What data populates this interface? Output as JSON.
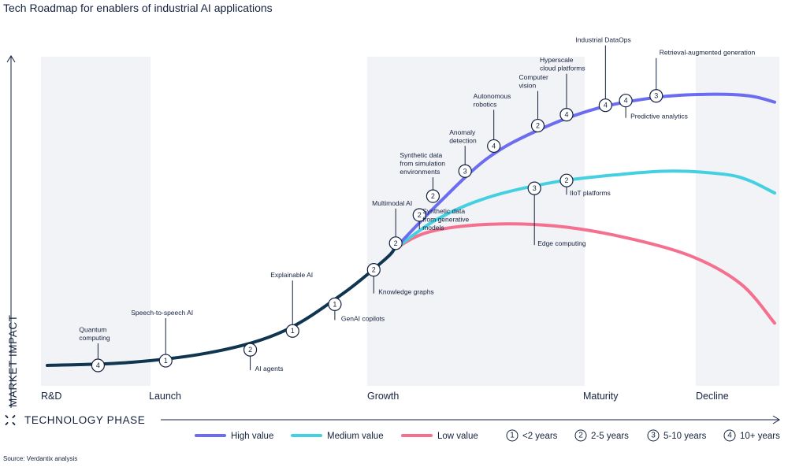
{
  "title": "Tech Roadmap for enablers of industrial AI applications",
  "source": "Source: Verdantix analysis",
  "colors": {
    "launch_line": "#0f3550",
    "high": "#6b6cf0",
    "medium": "#45d0e2",
    "low": "#f4708e",
    "band": "#f2f3f6",
    "text": "#14213d"
  },
  "chart_data": {
    "type": "line",
    "title": "Tech Roadmap for enablers of industrial AI applications",
    "xlabel": "TECHNOLOGY PHASE",
    "ylabel": "MARKET IMPACT",
    "x_phases": [
      "R&D",
      "Launch",
      "Growth",
      "Maturity",
      "Decline"
    ],
    "xlim": [
      0,
      4.3
    ],
    "ylim": [
      0,
      10
    ],
    "series": [
      {
        "name": "Launch curve",
        "color": "launch_line",
        "points": [
          [
            0,
            0.1
          ],
          [
            0.5,
            0.2
          ],
          [
            1,
            0.55
          ],
          [
            1.4,
            1.2
          ],
          [
            1.75,
            2.4
          ],
          [
            2,
            3.5
          ],
          [
            2.05,
            3.8
          ]
        ]
      },
      {
        "name": "High value",
        "color": "high",
        "points": [
          [
            2.05,
            3.8
          ],
          [
            2.3,
            5.2
          ],
          [
            2.6,
            6.7
          ],
          [
            2.9,
            7.6
          ],
          [
            3.25,
            8.3
          ],
          [
            3.6,
            8.65
          ],
          [
            3.9,
            8.75
          ],
          [
            4.15,
            8.7
          ],
          [
            4.3,
            8.5
          ]
        ]
      },
      {
        "name": "Medium value",
        "color": "medium",
        "points": [
          [
            2.05,
            3.8
          ],
          [
            2.3,
            4.75
          ],
          [
            2.6,
            5.45
          ],
          [
            3.0,
            5.95
          ],
          [
            3.4,
            6.2
          ],
          [
            3.7,
            6.3
          ],
          [
            4.0,
            6.2
          ],
          [
            4.15,
            6.0
          ],
          [
            4.3,
            5.6
          ]
        ]
      },
      {
        "name": "Low value",
        "color": "low",
        "points": [
          [
            2.05,
            3.8
          ],
          [
            2.25,
            4.35
          ],
          [
            2.6,
            4.6
          ],
          [
            3.0,
            4.55
          ],
          [
            3.4,
            4.2
          ],
          [
            3.8,
            3.6
          ],
          [
            4.1,
            2.7
          ],
          [
            4.3,
            1.45
          ]
        ]
      }
    ],
    "markers": [
      {
        "label": "Quantum computing",
        "value": "4",
        "x": 0.3,
        "y": 0.1,
        "callout": "up"
      },
      {
        "label": "Speech-to-speech AI",
        "value": "1",
        "x": 0.7,
        "y": 0.25,
        "callout": "up"
      },
      {
        "label": "AI agents",
        "value": "2",
        "x": 1.2,
        "y": 0.6,
        "callout": "down"
      },
      {
        "label": "Explainable AI",
        "value": "1",
        "x": 1.45,
        "y": 1.2,
        "callout": "up"
      },
      {
        "label": "GenAI copilots",
        "value": "1",
        "x": 1.7,
        "y": 2.05,
        "callout": "down"
      },
      {
        "label": "Knowledge graphs",
        "value": "2",
        "x": 1.93,
        "y": 3.15,
        "callout": "down"
      },
      {
        "label": "Multimodal AI",
        "value": "2",
        "x": 2.06,
        "y": 4.0,
        "callout": "up"
      },
      {
        "label": "Synthetic data from generative models",
        "value": "2",
        "x": 2.2,
        "y": 4.9,
        "callout": "down"
      },
      {
        "label": "Synthetic data from simulation environments",
        "value": "2",
        "x": 2.28,
        "y": 5.5,
        "callout": "up"
      },
      {
        "label": "Anomaly detection",
        "value": "3",
        "x": 2.47,
        "y": 6.3,
        "callout": "up"
      },
      {
        "label": "Autonomous robotics",
        "value": "4",
        "x": 2.64,
        "y": 7.1,
        "callout": "up"
      },
      {
        "label": "Computer vision",
        "value": "2",
        "x": 2.9,
        "y": 7.75,
        "callout": "up"
      },
      {
        "label": "Hyperscale cloud platforms",
        "value": "4",
        "x": 3.07,
        "y": 8.1,
        "callout": "up"
      },
      {
        "label": "Industrial DataOps",
        "value": "4",
        "x": 3.3,
        "y": 8.4,
        "callout": "up"
      },
      {
        "label": "Predictive analytics",
        "value": "4",
        "x": 3.42,
        "y": 8.55,
        "callout": "down"
      },
      {
        "label": "Retrieval-augmented generation",
        "value": "3",
        "x": 3.6,
        "y": 8.7,
        "callout": "up"
      },
      {
        "label": "Edge computing",
        "value": "3",
        "x": 2.88,
        "y": 5.75,
        "callout": "down"
      },
      {
        "label": "IIoT platforms",
        "value": "2",
        "x": 3.07,
        "y": 6.0,
        "callout": "down"
      }
    ],
    "legend": [
      {
        "label": "High value",
        "color": "high"
      },
      {
        "label": "Medium value",
        "color": "medium"
      },
      {
        "label": "Low value",
        "color": "low"
      },
      {
        "label": "<2 years",
        "value": "1"
      },
      {
        "label": "2-5 years",
        "value": "2"
      },
      {
        "label": "5-10 years",
        "value": "3"
      },
      {
        "label": "10+ years",
        "value": "4"
      }
    ]
  }
}
